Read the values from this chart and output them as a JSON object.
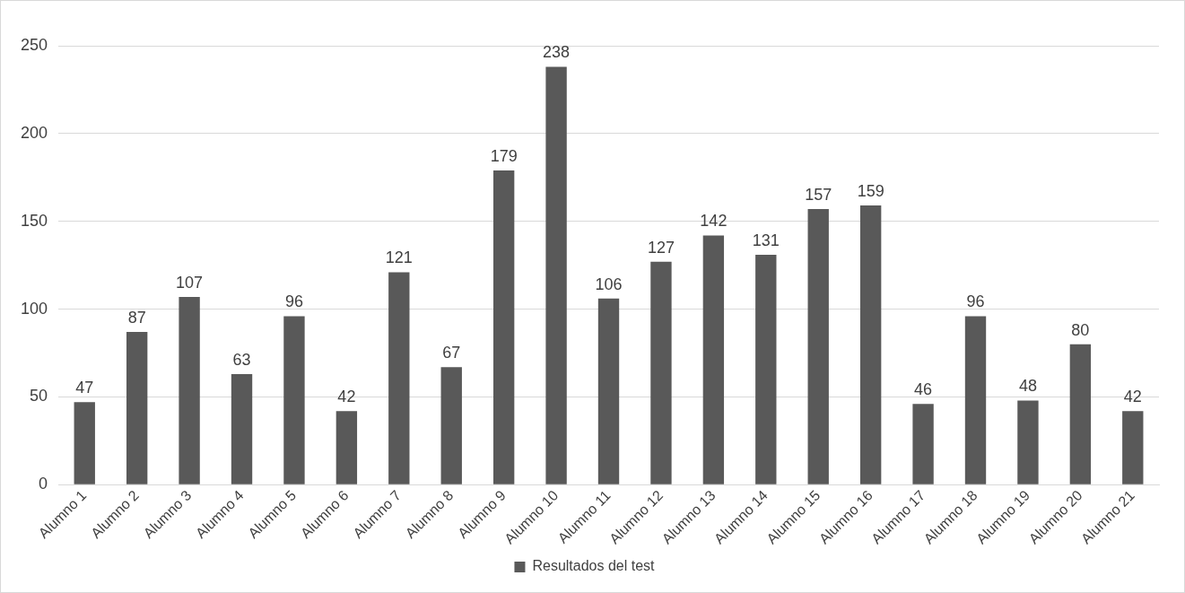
{
  "chart_data": {
    "type": "bar",
    "categories": [
      "Alumno 1",
      "Alumno 2",
      "Alumno 3",
      "Alumno 4",
      "Alumno 5",
      "Alumno 6",
      "Alumno 7",
      "Alumno 8",
      "Alumno 9",
      "Alumno 10",
      "Alumno 11",
      "Alumno 12",
      "Alumno 13",
      "Alumno 14",
      "Alumno 15",
      "Alumno 16",
      "Alumno 17",
      "Alumno 18",
      "Alumno 19",
      "Alumno 20",
      "Alumno 21"
    ],
    "series": [
      {
        "name": "Resultados del test",
        "color": "#595959",
        "values": [
          47,
          87,
          107,
          63,
          96,
          42,
          121,
          67,
          179,
          238,
          106,
          127,
          142,
          131,
          157,
          159,
          46,
          96,
          48,
          80,
          42
        ]
      }
    ],
    "ylim": [
      0,
      250
    ],
    "yticks": [
      0,
      50,
      100,
      150,
      200,
      250
    ],
    "grid": "y",
    "legend": "bottom",
    "data_labels": true
  }
}
